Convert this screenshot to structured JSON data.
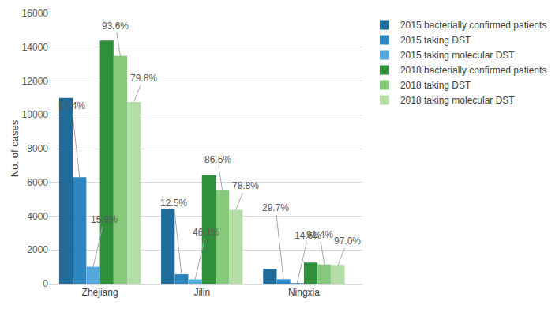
{
  "chart_data": {
    "type": "bar",
    "y_label": "No. of cases",
    "categories": [
      "Zhejiang",
      "Jilin",
      "Ningxia"
    ],
    "series": [
      {
        "name": "2015 bacterially confirmed patients",
        "color": "#1f6b99",
        "values": [
          11000,
          4450,
          880
        ]
      },
      {
        "name": "2015 taking DST",
        "color": "#2e86c1",
        "values": [
          6300,
          560,
          260
        ],
        "annotations": [
          "57.4%",
          "12.5%",
          "29.7%"
        ]
      },
      {
        "name": "2015 taking molecular DST",
        "color": "#55a7dc",
        "values": [
          1000,
          256,
          38
        ],
        "annotations": [
          "15.9%",
          "46.1%",
          "14.6%"
        ]
      },
      {
        "name": "2018 bacterially confirmed patients",
        "color": "#2f8f3a",
        "values": [
          14400,
          6420,
          1250
        ]
      },
      {
        "name": "2018 taking DST",
        "color": "#86c97a",
        "values": [
          13480,
          5550,
          1140
        ],
        "annotations": [
          "93.6%",
          "86.5%",
          "91.4%"
        ]
      },
      {
        "name": "2018 taking molecular DST",
        "color": "#b5dea6",
        "values": [
          10760,
          4375,
          1110
        ],
        "annotations": [
          "79.8%",
          "78.8%",
          "97.0%"
        ]
      }
    ],
    "ylim": [
      0,
      16000
    ],
    "yticks": [
      0,
      2000,
      4000,
      6000,
      8000,
      10000,
      12000,
      14000,
      16000
    ],
    "grid": true,
    "legend": "right"
  }
}
